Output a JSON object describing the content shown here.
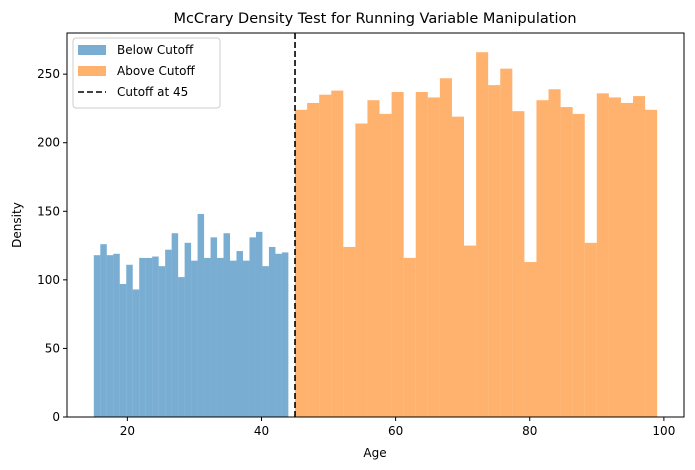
{
  "chart_data": {
    "type": "bar",
    "title": "McCrary Density Test for Running Variable Manipulation",
    "xlabel": "Age",
    "ylabel": "Density",
    "xlim": [
      11,
      103
    ],
    "ylim": [
      0,
      280
    ],
    "xticks": [
      20,
      40,
      60,
      80,
      100
    ],
    "yticks": [
      0,
      50,
      100,
      150,
      200,
      250
    ],
    "grid": false,
    "legend_position": "top-left",
    "cutoff": 45,
    "series": [
      {
        "name": "Below Cutoff",
        "color": "#1f77b4",
        "opacity": 0.6,
        "bin_start": 15,
        "bin_width": 0.967,
        "values": [
          118,
          126,
          118,
          119,
          97,
          111,
          93,
          116,
          116,
          117,
          110,
          122,
          134,
          102,
          127,
          114,
          148,
          116,
          131,
          116,
          134,
          114,
          121,
          114,
          131,
          135,
          110,
          124,
          119,
          120
        ]
      },
      {
        "name": "Above Cutoff",
        "color": "#ff7f0e",
        "opacity": 0.6,
        "bin_start": 45,
        "bin_width": 1.8,
        "values": [
          224,
          229,
          235,
          238,
          124,
          214,
          231,
          221,
          237,
          116,
          237,
          233,
          247,
          219,
          125,
          266,
          242,
          254,
          223,
          113,
          231,
          239,
          226,
          221,
          127,
          236,
          233,
          229,
          234,
          224
        ]
      }
    ],
    "reference_line": {
      "name": "Cutoff at 45",
      "x": 45,
      "style": "dashed",
      "color": "#000000"
    }
  }
}
